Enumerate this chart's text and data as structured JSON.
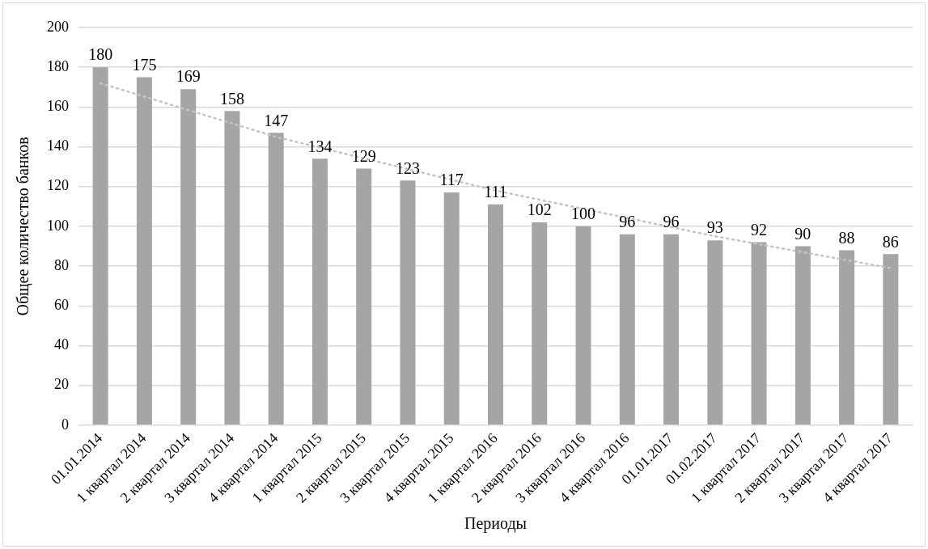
{
  "chart_data": {
    "type": "bar",
    "xlabel": "Периоды",
    "ylabel": "Общее количество банков",
    "categories": [
      "01.01.2014",
      "1 квартал 2014",
      "2 квартал 2014",
      "3 квартал 2014",
      "4 квартал 2014",
      "1 квартал 2015",
      "2 квартал 2015",
      "3 квартал 2015",
      "4 квартал 2015",
      "1 квартал 2016",
      "2 квартал 2016",
      "3 квартал 2016",
      "4 квартал 2016",
      "01.01.2017",
      "01.02.2017",
      "1 квартал 2017",
      "2 квартал 2017",
      "3 квартал 2017",
      "4 квартал 2017"
    ],
    "series": [
      {
        "color": "#a5a5a5",
        "values": [
          180,
          175,
          169,
          158,
          147,
          134,
          129,
          123,
          117,
          111,
          102,
          100,
          96,
          96,
          93,
          92,
          90,
          88,
          86
        ],
        "value_labels": [
          "180",
          "175",
          "169",
          "158",
          "147",
          "134",
          "129",
          "123",
          "117",
          "111",
          "102",
          "100",
          "96",
          "96",
          "93",
          "92",
          "90",
          "88",
          "86"
        ]
      },
      {
        "type": "line",
        "color": "#c4c4c4",
        "line_style": "dotted",
        "marker": "none",
        "x": [
          "01.01.2014",
          "4 квартал 2014",
          "1 квартал 2016",
          "01.02.2017",
          "4 квартал 2017"
        ],
        "values": [
          172,
          145,
          118,
          95,
          79
        ]
      }
    ],
    "ylim": [
      0,
      200
    ],
    "yticks": [
      0,
      20,
      40,
      60,
      80,
      100,
      120,
      140,
      160,
      180,
      200
    ],
    "grid": "y",
    "legend": false
  }
}
